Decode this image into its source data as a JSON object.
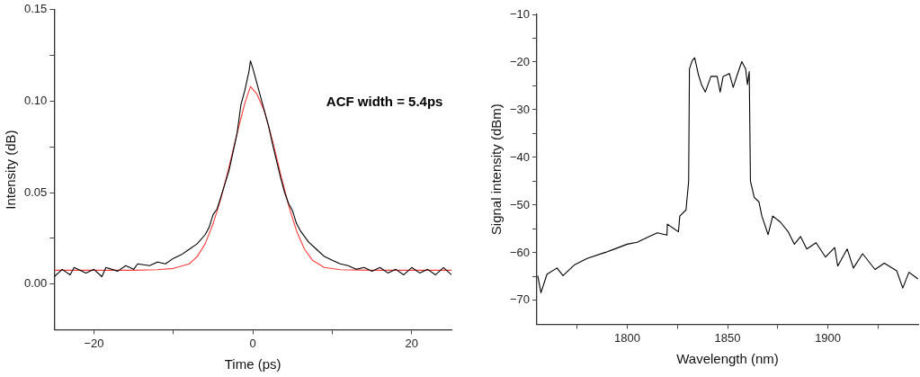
{
  "chart_data": [
    {
      "type": "line",
      "xlabel": "Time (ps)",
      "ylabel": "Intensity (dB)",
      "marker": "none",
      "xlim": [
        -25,
        25
      ],
      "xticks": [
        -20,
        {
          "value": -10,
          "label": null
        },
        0,
        {
          "value": 10,
          "label": null
        },
        20
      ],
      "ylim": [
        -0.025,
        0.15
      ],
      "yticks": [
        {
          "value": 0,
          "label": "0.00"
        },
        {
          "value": 0.025,
          "label": null
        },
        0.05,
        {
          "value": 0.075,
          "label": null
        },
        {
          "value": 0.1,
          "label": "0.10"
        },
        {
          "value": 0.125,
          "label": null
        },
        0.15
      ],
      "annotations": [
        "ACF width = 5.4ps"
      ],
      "series": [
        {
          "color": "#000000",
          "x": [
            -25,
            -24,
            -23,
            -22.5,
            -21,
            -20,
            -19,
            -18.5,
            -17,
            -16,
            -15,
            -14.5,
            -13,
            -12,
            -11,
            -10,
            -9,
            -8,
            -7,
            -6,
            -5.5,
            -5,
            -4.5,
            -4,
            -3.5,
            -3,
            -2.5,
            -2,
            -1.5,
            -1,
            -0.5,
            -0.3,
            0,
            0.5,
            1,
            1.5,
            2,
            2.5,
            3,
            3.5,
            4,
            4.5,
            5,
            5.5,
            6,
            7,
            8,
            9,
            10,
            11,
            12,
            13,
            14,
            15,
            16,
            17,
            18,
            19,
            20,
            21,
            22,
            23,
            24,
            25
          ],
          "values": [
            0.004,
            0.008,
            0.005,
            0.009,
            0.006,
            0.008,
            0.004,
            0.009,
            0.007,
            0.01,
            0.008,
            0.011,
            0.01,
            0.012,
            0.011,
            0.014,
            0.016,
            0.019,
            0.022,
            0.027,
            0.031,
            0.038,
            0.041,
            0.048,
            0.055,
            0.062,
            0.072,
            0.082,
            0.098,
            0.106,
            0.116,
            0.122,
            0.118,
            0.11,
            0.102,
            0.094,
            0.086,
            0.076,
            0.067,
            0.058,
            0.05,
            0.044,
            0.04,
            0.033,
            0.029,
            0.023,
            0.019,
            0.015,
            0.013,
            0.011,
            0.01,
            0.008,
            0.009,
            0.007,
            0.009,
            0.006,
            0.008,
            0.005,
            0.009,
            0.006,
            0.008,
            0.005,
            0.009,
            0.005
          ]
        },
        {
          "color": "#ff3b3b",
          "x": [
            -25,
            -15,
            -12,
            -10,
            -8,
            -7,
            -6,
            -5,
            -4,
            -3,
            -2,
            -1,
            -0.3,
            0.5,
            1.5,
            2.5,
            3.5,
            4.5,
            5.5,
            6.5,
            7.5,
            9,
            11,
            15,
            25
          ],
          "values": [
            0.0075,
            0.0075,
            0.0078,
            0.0085,
            0.011,
            0.015,
            0.022,
            0.033,
            0.047,
            0.064,
            0.082,
            0.099,
            0.108,
            0.104,
            0.094,
            0.078,
            0.06,
            0.043,
            0.029,
            0.019,
            0.013,
            0.009,
            0.0078,
            0.0075,
            0.0075
          ]
        }
      ]
    },
    {
      "type": "line",
      "xlabel": "Wavelength (nm)",
      "ylabel": "Signal intensity (dBm)",
      "marker": "none",
      "xlim": [
        1755,
        1945
      ],
      "xticks": [
        {
          "value": 1775,
          "label": null
        },
        1800,
        {
          "value": 1825,
          "label": null
        },
        1850,
        {
          "value": 1875,
          "label": null
        },
        1900,
        {
          "value": 1925,
          "label": null
        }
      ],
      "ylim": [
        -75,
        -10
      ],
      "yticks": [
        -70,
        {
          "value": -65,
          "label": null
        },
        -60,
        {
          "value": -55,
          "label": null
        },
        -50,
        {
          "value": -45,
          "label": null
        },
        -40,
        {
          "value": -35,
          "label": null
        },
        -30,
        {
          "value": -25,
          "label": null
        },
        -20,
        {
          "value": -15,
          "label": null
        },
        -10
      ],
      "series": [
        {
          "color": "#000000",
          "x": [
            1755.4,
            1757,
            1760,
            1765,
            1768,
            1773.8,
            1780,
            1789.2,
            1795,
            1800,
            1805,
            1810.8,
            1815,
            1819.8,
            1820,
            1825.5,
            1826.2,
            1829.3,
            1830.6,
            1831,
            1832.4,
            1833.6,
            1835.5,
            1837,
            1838.9,
            1841.7,
            1844.8,
            1846.3,
            1847.8,
            1850.9,
            1852.8,
            1854.8,
            1857.1,
            1859,
            1859.9,
            1860.8,
            1861.4,
            1863.3,
            1865.6,
            1867.1,
            1870.2,
            1872.5,
            1876.4,
            1880.2,
            1883.3,
            1886.4,
            1889.5,
            1894.1,
            1898.8,
            1903.4,
            1904.9,
            1909.6,
            1912.7,
            1917.3,
            1923.5,
            1928.1,
            1934.3,
            1937.3,
            1940.4,
            1944.9
          ],
          "values": [
            -64.8,
            -68.4,
            -64.5,
            -63.2,
            -64.8,
            -62.5,
            -61.2,
            -59.9,
            -59.0,
            -58.2,
            -57.8,
            -56.6,
            -55.8,
            -56.3,
            -54.0,
            -55.6,
            -52.3,
            -51.0,
            -45.0,
            -21.4,
            -19.7,
            -19.1,
            -22.7,
            -24.7,
            -26.3,
            -23.0,
            -23.0,
            -26.3,
            -23.0,
            -22.4,
            -25.3,
            -22.7,
            -19.9,
            -21.4,
            -24.7,
            -22.0,
            -45.0,
            -48.4,
            -49.3,
            -52.3,
            -56.2,
            -52.3,
            -53.6,
            -55.6,
            -58.2,
            -56.6,
            -59.2,
            -57.9,
            -60.9,
            -58.9,
            -62.8,
            -59.2,
            -63.2,
            -60.2,
            -63.5,
            -62.2,
            -63.8,
            -67.4,
            -64.1,
            -65.5
          ]
        }
      ]
    }
  ]
}
